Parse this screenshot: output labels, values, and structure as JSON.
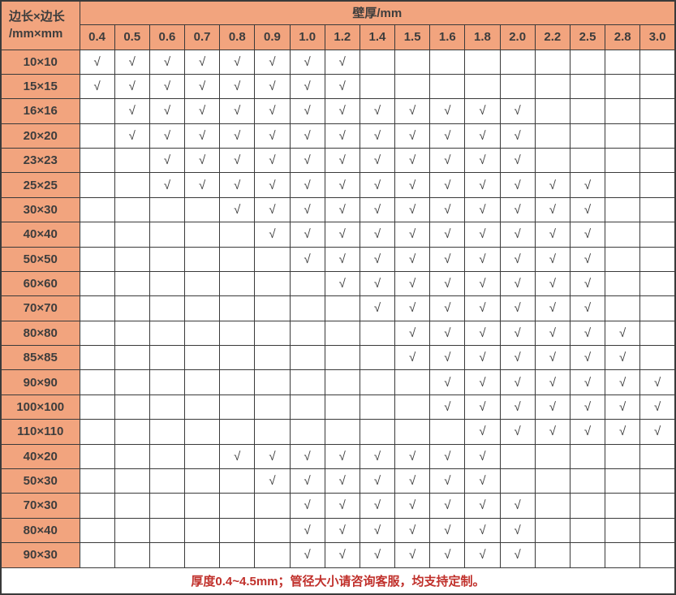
{
  "header": {
    "corner_line1": "边长×边长",
    "corner_line2": "/mm×mm",
    "thickness_title": "壁厚/mm"
  },
  "check_glyph": "√",
  "footer_note": "厚度0.4~4.5mm；管径大小请咨询客服，均支持定制。",
  "colors": {
    "header_bg": "#F2A47E",
    "grid_line": "#3a3a3a",
    "check_color": "#3e3e3e",
    "footer_text": "#C0302B",
    "cell_bg": "#ffffff"
  },
  "chart_data": {
    "type": "table",
    "title": "壁厚/mm",
    "row_header": "边长×边长/mm×mm",
    "columns": [
      "0.4",
      "0.5",
      "0.6",
      "0.7",
      "0.8",
      "0.9",
      "1.0",
      "1.2",
      "1.4",
      "1.5",
      "1.6",
      "1.8",
      "2.0",
      "2.2",
      "2.5",
      "2.8",
      "3.0"
    ],
    "rows": [
      {
        "size": "10×10",
        "checked": [
          "0.4",
          "0.5",
          "0.6",
          "0.7",
          "0.8",
          "0.9",
          "1.0",
          "1.2"
        ]
      },
      {
        "size": "15×15",
        "checked": [
          "0.4",
          "0.5",
          "0.6",
          "0.7",
          "0.8",
          "0.9",
          "1.0",
          "1.2"
        ]
      },
      {
        "size": "16×16",
        "checked": [
          "0.5",
          "0.6",
          "0.7",
          "0.8",
          "0.9",
          "1.0",
          "1.2",
          "1.4",
          "1.5",
          "1.6",
          "1.8",
          "2.0"
        ]
      },
      {
        "size": "20×20",
        "checked": [
          "0.5",
          "0.6",
          "0.7",
          "0.8",
          "0.9",
          "1.0",
          "1.2",
          "1.4",
          "1.5",
          "1.6",
          "1.8",
          "2.0"
        ]
      },
      {
        "size": "23×23",
        "checked": [
          "0.6",
          "0.7",
          "0.8",
          "0.9",
          "1.0",
          "1.2",
          "1.4",
          "1.5",
          "1.6",
          "1.8",
          "2.0"
        ]
      },
      {
        "size": "25×25",
        "checked": [
          "0.6",
          "0.7",
          "0.8",
          "0.9",
          "1.0",
          "1.2",
          "1.4",
          "1.5",
          "1.6",
          "1.8",
          "2.0",
          "2.2",
          "2.5"
        ]
      },
      {
        "size": "30×30",
        "checked": [
          "0.8",
          "0.9",
          "1.0",
          "1.2",
          "1.4",
          "1.5",
          "1.6",
          "1.8",
          "2.0",
          "2.2",
          "2.5"
        ]
      },
      {
        "size": "40×40",
        "checked": [
          "0.9",
          "1.0",
          "1.2",
          "1.4",
          "1.5",
          "1.6",
          "1.8",
          "2.0",
          "2.2",
          "2.5"
        ]
      },
      {
        "size": "50×50",
        "checked": [
          "1.0",
          "1.2",
          "1.4",
          "1.5",
          "1.6",
          "1.8",
          "2.0",
          "2.2",
          "2.5"
        ]
      },
      {
        "size": "60×60",
        "checked": [
          "1.2",
          "1.4",
          "1.5",
          "1.6",
          "1.8",
          "2.0",
          "2.2",
          "2.5"
        ]
      },
      {
        "size": "70×70",
        "checked": [
          "1.4",
          "1.5",
          "1.6",
          "1.8",
          "2.0",
          "2.2",
          "2.5"
        ]
      },
      {
        "size": "80×80",
        "checked": [
          "1.5",
          "1.6",
          "1.8",
          "2.0",
          "2.2",
          "2.5",
          "2.8"
        ]
      },
      {
        "size": "85×85",
        "checked": [
          "1.5",
          "1.6",
          "1.8",
          "2.0",
          "2.2",
          "2.5",
          "2.8"
        ]
      },
      {
        "size": "90×90",
        "checked": [
          "1.6",
          "1.8",
          "2.0",
          "2.2",
          "2.5",
          "2.8",
          "3.0"
        ]
      },
      {
        "size": "100×100",
        "checked": [
          "1.6",
          "1.8",
          "2.0",
          "2.2",
          "2.5",
          "2.8",
          "3.0"
        ]
      },
      {
        "size": "110×110",
        "checked": [
          "1.8",
          "2.0",
          "2.2",
          "2.5",
          "2.8",
          "3.0"
        ]
      },
      {
        "size": "40×20",
        "checked": [
          "0.8",
          "0.9",
          "1.0",
          "1.2",
          "1.4",
          "1.5",
          "1.6",
          "1.8"
        ]
      },
      {
        "size": "50×30",
        "checked": [
          "0.9",
          "1.0",
          "1.2",
          "1.4",
          "1.5",
          "1.6",
          "1.8"
        ]
      },
      {
        "size": "70×30",
        "checked": [
          "1.0",
          "1.2",
          "1.4",
          "1.5",
          "1.6",
          "1.8",
          "2.0"
        ]
      },
      {
        "size": "80×40",
        "checked": [
          "1.0",
          "1.2",
          "1.4",
          "1.5",
          "1.6",
          "1.8",
          "2.0"
        ]
      },
      {
        "size": "90×30",
        "checked": [
          "1.0",
          "1.2",
          "1.4",
          "1.5",
          "1.6",
          "1.8",
          "2.0"
        ]
      }
    ]
  }
}
